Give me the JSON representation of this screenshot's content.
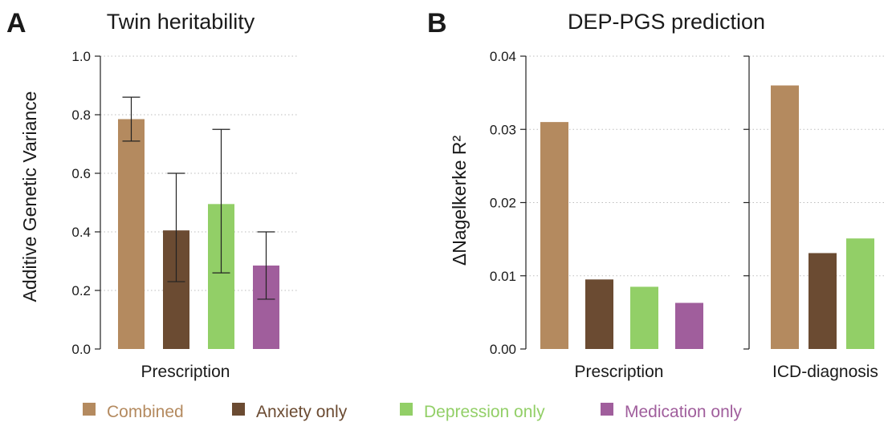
{
  "legend": [
    {
      "label": "Combined",
      "color": "#b48a5f"
    },
    {
      "label": "Anxiety only",
      "color": "#6b4b32"
    },
    {
      "label": "Depression only",
      "color": "#92cf67"
    },
    {
      "label": "Medication only",
      "color": "#a05e9c"
    }
  ],
  "chart_data": [
    {
      "type": "bar",
      "panel": "A",
      "title": "Twin heritability",
      "ylabel": "Additive Genetic Variance",
      "xlabel": "Prescription",
      "ylim": [
        0,
        1.0
      ],
      "yticks": [
        "0.0",
        "0.2",
        "0.4",
        "0.6",
        "0.8",
        "1.0"
      ],
      "grid": true,
      "series": [
        {
          "name": "Combined",
          "value": 0.785,
          "ci": [
            0.71,
            0.86
          ]
        },
        {
          "name": "Anxiety only",
          "value": 0.405,
          "ci": [
            0.23,
            0.6
          ]
        },
        {
          "name": "Depression only",
          "value": 0.495,
          "ci": [
            0.26,
            0.75
          ]
        },
        {
          "name": "Medication only",
          "value": 0.285,
          "ci": [
            0.17,
            0.4
          ]
        }
      ]
    },
    {
      "type": "bar",
      "panel": "B",
      "title": "DEP-PGS prediction",
      "ylabel": "ΔNagelkerke R²",
      "ylim": [
        0,
        0.04
      ],
      "yticks": [
        "0.00",
        "0.01",
        "0.02",
        "0.03",
        "0.04"
      ],
      "grid": true,
      "groups": [
        {
          "label": "Prescription",
          "series": [
            {
              "name": "Combined",
              "value": 0.031
            },
            {
              "name": "Anxiety only",
              "value": 0.0095
            },
            {
              "name": "Depression only",
              "value": 0.0085
            },
            {
              "name": "Medication only",
              "value": 0.0063
            }
          ]
        },
        {
          "label": "ICD-diagnosis",
          "series": [
            {
              "name": "Combined",
              "value": 0.036
            },
            {
              "name": "Anxiety only",
              "value": 0.0131
            },
            {
              "name": "Depression only",
              "value": 0.0151
            }
          ]
        }
      ]
    }
  ]
}
